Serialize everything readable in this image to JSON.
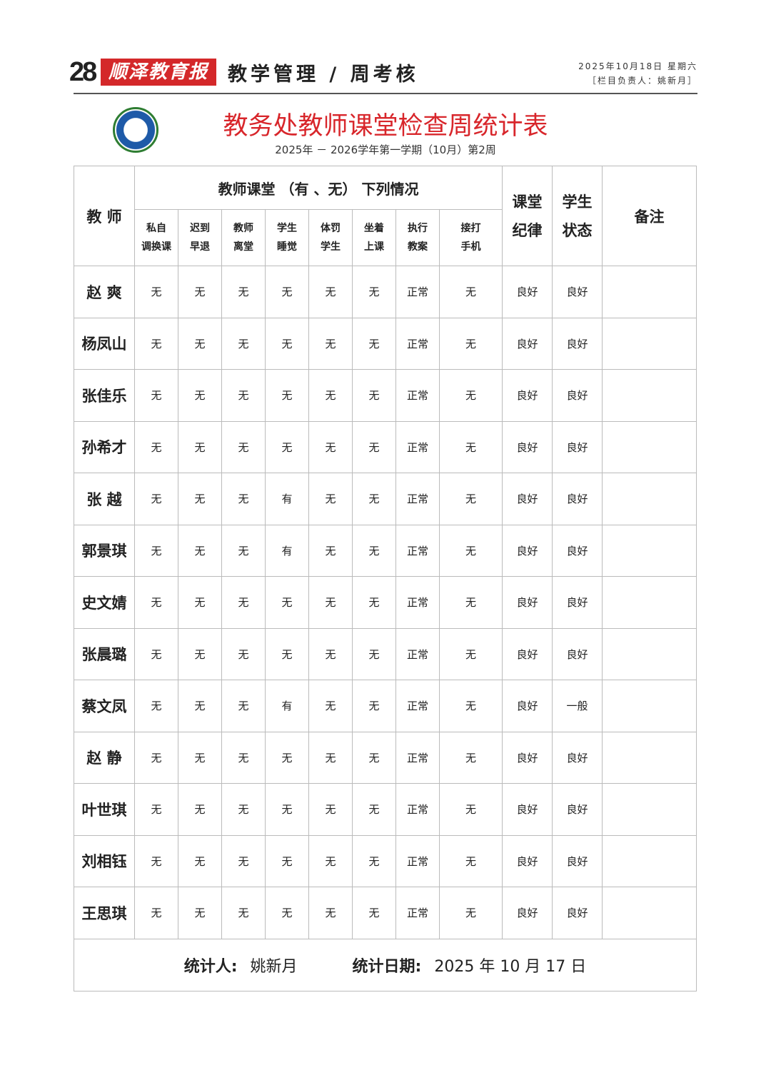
{
  "header": {
    "page_number": "28",
    "brand": "顺泽教育报",
    "column": "教学管理 / 周考核",
    "date": "2025年10月18日 星期六",
    "editor": "［栏目负责人：姚新月］"
  },
  "title": "教务处教师课堂检查周统计表",
  "subtitle": "2025年 － 2026学年第一学期（10月）第2周",
  "table": {
    "teacher_header": "教 师",
    "group_header": "教师课堂 （有 、无） 下列情况",
    "sub_headers": [
      [
        "私自",
        "调换课"
      ],
      [
        "迟到",
        "早退"
      ],
      [
        "教师",
        "离堂"
      ],
      [
        "学生",
        "睡觉"
      ],
      [
        "体罚",
        "学生"
      ],
      [
        "坐着",
        "上课"
      ],
      [
        "执行",
        "教案"
      ],
      [
        "接打",
        "手机"
      ]
    ],
    "discipline_header": [
      "课堂",
      "纪律"
    ],
    "status_header": [
      "学生",
      "状态"
    ],
    "remarks_header": "备注",
    "rows": [
      {
        "name": "赵 爽",
        "values": [
          "无",
          "无",
          "无",
          "无",
          "无",
          "无",
          "正常",
          "无",
          "良好",
          "良好"
        ]
      },
      {
        "name": "杨凤山",
        "values": [
          "无",
          "无",
          "无",
          "无",
          "无",
          "无",
          "正常",
          "无",
          "良好",
          "良好"
        ]
      },
      {
        "name": "张佳乐",
        "values": [
          "无",
          "无",
          "无",
          "无",
          "无",
          "无",
          "正常",
          "无",
          "良好",
          "良好"
        ]
      },
      {
        "name": "孙希才",
        "values": [
          "无",
          "无",
          "无",
          "无",
          "无",
          "无",
          "正常",
          "无",
          "良好",
          "良好"
        ]
      },
      {
        "name": "张 越",
        "values": [
          "无",
          "无",
          "无",
          "有",
          "无",
          "无",
          "正常",
          "无",
          "良好",
          "良好"
        ]
      },
      {
        "name": "郭景琪",
        "values": [
          "无",
          "无",
          "无",
          "有",
          "无",
          "无",
          "正常",
          "无",
          "良好",
          "良好"
        ]
      },
      {
        "name": "史文婧",
        "values": [
          "无",
          "无",
          "无",
          "无",
          "无",
          "无",
          "正常",
          "无",
          "良好",
          "良好"
        ]
      },
      {
        "name": "张晨璐",
        "values": [
          "无",
          "无",
          "无",
          "无",
          "无",
          "无",
          "正常",
          "无",
          "良好",
          "良好"
        ]
      },
      {
        "name": "蔡文凤",
        "values": [
          "无",
          "无",
          "无",
          "有",
          "无",
          "无",
          "正常",
          "无",
          "良好",
          "一般"
        ]
      },
      {
        "name": "赵 静",
        "values": [
          "无",
          "无",
          "无",
          "无",
          "无",
          "无",
          "正常",
          "无",
          "良好",
          "良好"
        ]
      },
      {
        "name": "叶世琪",
        "values": [
          "无",
          "无",
          "无",
          "无",
          "无",
          "无",
          "正常",
          "无",
          "良好",
          "良好"
        ]
      },
      {
        "name": "刘相钰",
        "values": [
          "无",
          "无",
          "无",
          "无",
          "无",
          "无",
          "正常",
          "无",
          "良好",
          "良好"
        ]
      },
      {
        "name": "王思琪",
        "values": [
          "无",
          "无",
          "无",
          "无",
          "无",
          "无",
          "正常",
          "无",
          "良好",
          "良好"
        ]
      }
    ],
    "footer": {
      "stat_label": "统计人:",
      "stat_person": "姚新月",
      "date_label": "统计日期:",
      "date_value": "2025 年 10 月  17 日"
    }
  }
}
